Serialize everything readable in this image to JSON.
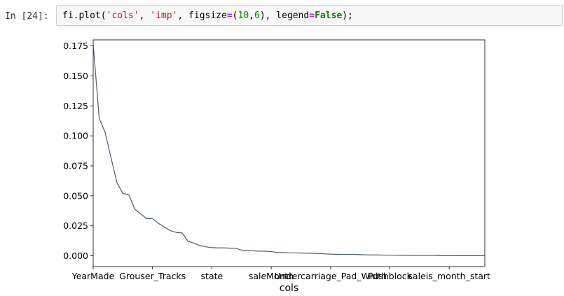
{
  "cell": {
    "prompt": "In [24]:",
    "code": {
      "fn": "fi.plot(",
      "arg1": "'cols'",
      "sep1": ", ",
      "arg2": "'imp'",
      "sep2": ", figsize",
      "eq1": "=",
      "tuple_open": "(",
      "n1": "10",
      "comma": ",",
      "n2": "6",
      "tuple_close": "), legend",
      "eq2": "=",
      "kw": "False",
      "end": ");"
    }
  },
  "colors": {
    "line": "#4a5b6c",
    "input_bg": "#f7f7f7",
    "input_border": "#cfcfcf"
  },
  "chart_data": {
    "type": "line",
    "xlabel": "cols",
    "ylabel": "",
    "legend": false,
    "ylim": [
      -0.009,
      0.18
    ],
    "xlim": [
      0,
      66
    ],
    "yticks": [
      "0.000",
      "0.025",
      "0.050",
      "0.075",
      "0.100",
      "0.125",
      "0.150",
      "0.175"
    ],
    "ytick_values": [
      0,
      0.025,
      0.05,
      0.075,
      0.1,
      0.125,
      0.15,
      0.175
    ],
    "xticks": [
      "YearMade",
      "Grouser_Tracks",
      "state",
      "saleMonth",
      "Undercarriage_Pad_Width",
      "Pushblock",
      "saleis_month_start"
    ],
    "xtick_positions": [
      0,
      10,
      20,
      30,
      40,
      50,
      60
    ],
    "series": [
      {
        "values": [
          0.177,
          0.115,
          0.103,
          0.082,
          0.061,
          0.052,
          0.051,
          0.039,
          0.035,
          0.031,
          0.031,
          0.027,
          0.024,
          0.021,
          0.0195,
          0.019,
          0.012,
          0.0105,
          0.0085,
          0.0075,
          0.0068,
          0.0066,
          0.0066,
          0.0064,
          0.0062,
          0.0048,
          0.0044,
          0.0041,
          0.0039,
          0.0038,
          0.0035,
          0.0028,
          0.0026,
          0.0025,
          0.0024,
          0.0023,
          0.0022,
          0.0021,
          0.0019,
          0.0016,
          0.0014,
          0.0013,
          0.0012,
          0.0012,
          0.0011,
          0.001,
          0.0008,
          0.0007,
          0.0007,
          0.0006,
          0.0005,
          0.0005,
          0.0004,
          0.0004,
          0.0004,
          0.0003,
          0.0003,
          0.0003,
          0.0002,
          0.0002,
          0.0002,
          0.0001,
          0.0001,
          0.0001,
          0.0001,
          0.0001,
          0.0001
        ]
      }
    ]
  }
}
